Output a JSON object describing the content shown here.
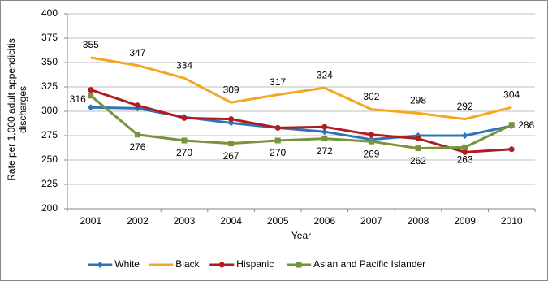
{
  "chart_data": {
    "type": "line",
    "xlabel": "Year",
    "ylabel": "Rate per 1,000 adult appendicitis discharges",
    "categories": [
      "2001",
      "2002",
      "2003",
      "2004",
      "2005",
      "2006",
      "2007",
      "2008",
      "2009",
      "2010"
    ],
    "ylim": [
      200,
      400
    ],
    "yticks": [
      200,
      225,
      250,
      275,
      300,
      325,
      350,
      375,
      400
    ],
    "grid": true,
    "legend": "bottom",
    "series": [
      {
        "name": "White",
        "color": "#2e75b6",
        "marker": "diamond",
        "values": [
          304,
          303,
          294,
          288,
          283,
          279,
          271,
          275,
          275,
          285
        ]
      },
      {
        "name": "Black",
        "color": "#f5a623",
        "marker": "none",
        "data_labels": "above",
        "values": [
          355,
          347,
          334,
          309,
          317,
          324,
          302,
          298,
          292,
          304
        ]
      },
      {
        "name": "Hispanic",
        "color": "#b01c20",
        "marker": "circle",
        "values": [
          322,
          306,
          293,
          292,
          283,
          284,
          276,
          272,
          258,
          261
        ]
      },
      {
        "name": "Asian and Pacific Islander",
        "color": "#77933c",
        "marker": "square",
        "data_labels": "below",
        "values": [
          316,
          276,
          270,
          267,
          270,
          272,
          269,
          262,
          263,
          286
        ]
      }
    ]
  }
}
